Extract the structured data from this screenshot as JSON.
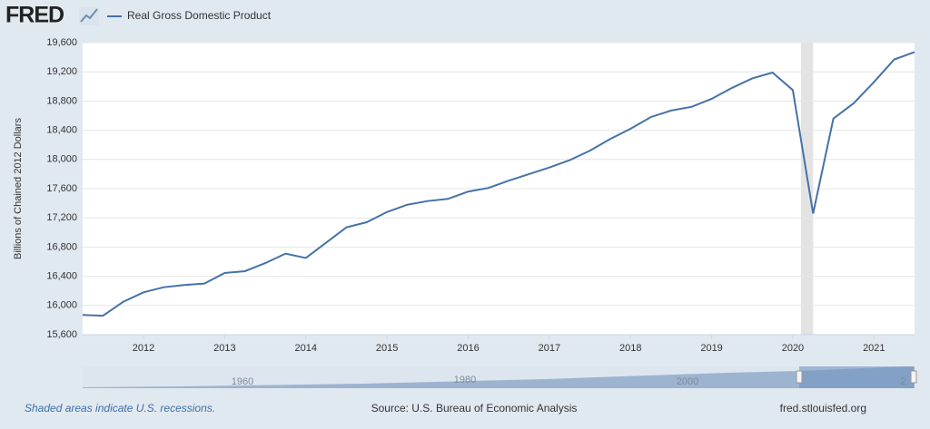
{
  "chart_data": {
    "type": "line",
    "logo": "FRED",
    "ylabel": "Billions of Chained 2012 Dollars",
    "note": "Shaded areas indicate U.S. recessions.",
    "source": "Source: U.S. Bureau of Economic Analysis",
    "site": "fred.stlouisfed.org",
    "navigator_labels": [
      "1960",
      "1980",
      "2000",
      "2."
    ],
    "grid": true,
    "recession_color": "#e3e3e3",
    "recessions": [
      [
        2020.1,
        2020.25
      ]
    ],
    "x": [
      2011.25,
      2011.5,
      2011.75,
      2012,
      2012.25,
      2012.5,
      2012.75,
      2013,
      2013.25,
      2013.5,
      2013.75,
      2014,
      2014.25,
      2014.5,
      2014.75,
      2015,
      2015.25,
      2015.5,
      2015.75,
      2016,
      2016.25,
      2016.5,
      2016.75,
      2017,
      2017.25,
      2017.5,
      2017.75,
      2018,
      2018.25,
      2018.5,
      2018.75,
      2019,
      2019.25,
      2019.5,
      2019.75,
      2020,
      2020.25,
      2020.5,
      2020.75,
      2021,
      2021.25,
      2021.5
    ],
    "series": [
      {
        "name": "Real Gross Domestic Product",
        "color": "#4572a7",
        "values": [
          15870,
          15860,
          16050,
          16180,
          16250,
          16280,
          16300,
          16445,
          16470,
          16580,
          16710,
          16650,
          16860,
          17070,
          17140,
          17280,
          17380,
          17430,
          17460,
          17560,
          17610,
          17710,
          17800,
          17890,
          17990,
          18120,
          18280,
          18420,
          18580,
          18670,
          18720,
          18830,
          18980,
          19110,
          19190,
          18950,
          17260,
          18560,
          18770,
          19060,
          19370,
          19470
        ]
      }
    ],
    "xlim": [
      2011.25,
      2021.5
    ],
    "xticks": [
      2012,
      2013,
      2014,
      2015,
      2016,
      2017,
      2018,
      2019,
      2020,
      2021
    ],
    "ylim": [
      15600,
      19600
    ],
    "yticks": [
      {
        "value": 15600,
        "label": "15,600"
      },
      {
        "value": 16000,
        "label": "16,000"
      },
      {
        "value": 16400,
        "label": "16,400"
      },
      {
        "value": 16800,
        "label": "16,800"
      },
      {
        "value": 17200,
        "label": "17,200"
      },
      {
        "value": 17600,
        "label": "17,600"
      },
      {
        "value": 18000,
        "label": "18,000"
      },
      {
        "value": 18400,
        "label": "18,400"
      },
      {
        "value": 18800,
        "label": "18,800"
      },
      {
        "value": 19200,
        "label": "19,200"
      },
      {
        "value": 19600,
        "label": "19,600"
      }
    ]
  }
}
